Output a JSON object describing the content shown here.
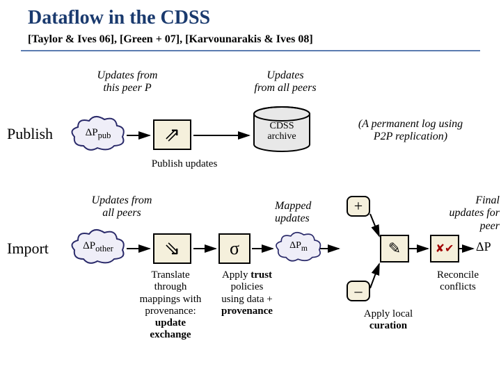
{
  "title": "Dataflow in the CDSS",
  "subtitle": "[Taylor & Ives 06],  [Green + 07],  [Karvounarakis & Ives 08]",
  "colors": {
    "title": "#1a3a6e",
    "hr": "#5a7bb0",
    "cloud_fill": "#efeef8",
    "cloud_stroke": "#2a2a6a",
    "box_fill": "#f5f0dc",
    "cyl_fill": "#e8e8e8"
  },
  "sections": {
    "publish": "Publish",
    "import": "Import"
  },
  "clouds": {
    "dp_pub": "ΔP",
    "dp_pub_sub": "pub",
    "dp_other": "ΔP",
    "dp_other_sub": "other",
    "dp_m": "ΔP",
    "dp_m_sub": "m",
    "dp_final": "ΔP"
  },
  "notes": {
    "updates_this_peer": "Updates from\nthis peer P",
    "updates_all_peers_top": "Updates\nfrom all peers",
    "updates_all_peers_left": "Updates from\nall peers",
    "archive_note": "(A permanent log using\nP2P replication)",
    "mapped_updates": "Mapped\nupdates",
    "final_updates": "Final\nupdates for\npeer"
  },
  "boxes": {
    "publish_arrow": "⇗",
    "import_arrow": "⇘",
    "sigma": "σ",
    "plus": "+",
    "minus": "–",
    "xcheck": "✘✔"
  },
  "cyl": {
    "archive_l1": "CDSS",
    "archive_l2": "archive"
  },
  "captions": {
    "publish_updates": "Publish updates",
    "translate": "Translate\nthrough\nmappings with\nprovenance:",
    "translate_b": "update\nexchange",
    "apply_trust": "Apply",
    "apply_trust_b": "trust",
    "apply_trust2": "policies\nusing data +",
    "apply_trust_b2": "provenance",
    "apply_local": "Apply local",
    "apply_local_b": "curation",
    "reconcile": "Reconcile\nconflicts"
  },
  "pencil_icon": "✎"
}
